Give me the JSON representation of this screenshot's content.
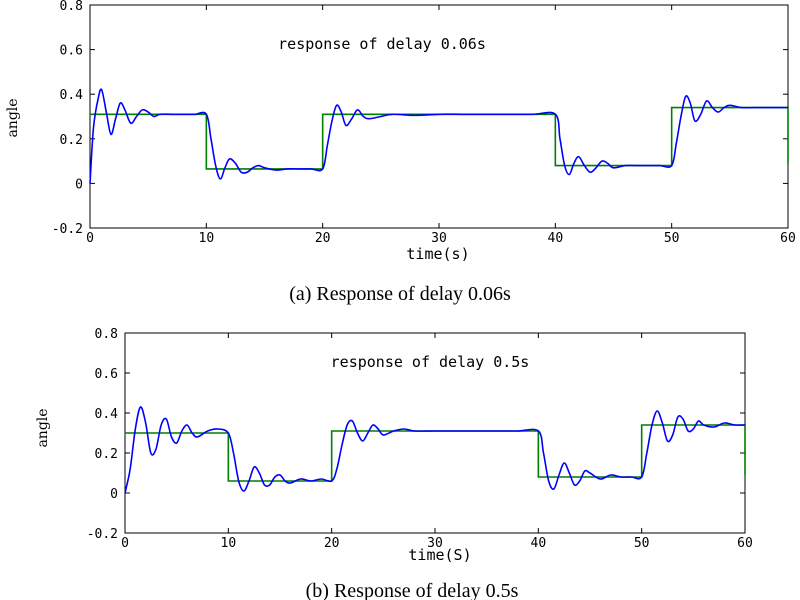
{
  "chart_data": [
    {
      "type": "line",
      "title": "response of delay 0.06s",
      "xlabel": "time(s)",
      "ylabel": "angle",
      "caption": "(a) Response of delay 0.06s",
      "xlim": [
        0,
        60
      ],
      "ylim": [
        -0.2,
        0.8
      ],
      "xticks": [
        "0",
        "10",
        "20",
        "30",
        "40",
        "50",
        "60"
      ],
      "yticks": [
        "-0.2",
        "0",
        "0.2",
        "0.4",
        "0.6",
        "0.8"
      ],
      "grid": false,
      "colors": {
        "reference": "#007f00",
        "response": "#0000ff"
      },
      "series": [
        {
          "role": "reference",
          "segments": [
            {
              "x0": 0,
              "x1": 10,
              "y": 0.31
            },
            {
              "x0": 10,
              "x1": 20,
              "y": 0.065
            },
            {
              "x0": 20,
              "x1": 40,
              "y": 0.31
            },
            {
              "x0": 40,
              "x1": 50,
              "y": 0.08
            },
            {
              "x0": 50,
              "x1": 60,
              "y": 0.34
            }
          ]
        },
        {
          "role": "response",
          "x": [
            0,
            0.3,
            0.7,
            1.0,
            1.4,
            1.8,
            2.2,
            2.6,
            3.0,
            3.5,
            4.0,
            4.5,
            5.0,
            5.5,
            6.0,
            7.0,
            8.0,
            9.0,
            10.0,
            10.4,
            10.8,
            11.2,
            11.6,
            12.0,
            12.5,
            13.0,
            13.5,
            14.0,
            14.5,
            15.0,
            16.0,
            17.0,
            18.0,
            19.0,
            20.0,
            20.4,
            20.8,
            21.2,
            21.6,
            22.0,
            22.5,
            23.0,
            23.5,
            24.0,
            25.0,
            26.0,
            28.0,
            30.0,
            32.0,
            35.0,
            38.0,
            40.0,
            40.4,
            40.8,
            41.2,
            41.6,
            42.0,
            42.5,
            43.0,
            43.5,
            44.0,
            44.5,
            45.0,
            46.0,
            47.0,
            48.0,
            49.0,
            50.0,
            50.4,
            50.8,
            51.2,
            51.6,
            52.0,
            52.5,
            53.0,
            53.5,
            54.0,
            54.5,
            55.0,
            56.0,
            57.0,
            58.0,
            59.0,
            60.0
          ],
          "y": [
            0.0,
            0.25,
            0.38,
            0.42,
            0.32,
            0.22,
            0.29,
            0.36,
            0.33,
            0.27,
            0.3,
            0.33,
            0.32,
            0.3,
            0.31,
            0.31,
            0.31,
            0.31,
            0.31,
            0.2,
            0.08,
            0.02,
            0.07,
            0.11,
            0.09,
            0.05,
            0.05,
            0.07,
            0.08,
            0.07,
            0.06,
            0.065,
            0.065,
            0.065,
            0.065,
            0.17,
            0.28,
            0.35,
            0.32,
            0.26,
            0.29,
            0.33,
            0.3,
            0.29,
            0.3,
            0.31,
            0.305,
            0.31,
            0.31,
            0.31,
            0.31,
            0.31,
            0.2,
            0.08,
            0.04,
            0.09,
            0.12,
            0.08,
            0.05,
            0.07,
            0.1,
            0.09,
            0.07,
            0.08,
            0.08,
            0.08,
            0.08,
            0.08,
            0.18,
            0.3,
            0.39,
            0.36,
            0.28,
            0.31,
            0.37,
            0.34,
            0.32,
            0.34,
            0.35,
            0.34,
            0.34,
            0.34,
            0.34,
            0.34
          ]
        }
      ]
    },
    {
      "type": "line",
      "title": "response of delay 0.5s",
      "xlabel": "time(S)",
      "ylabel": "angle",
      "caption": "(b) Response of delay 0.5s",
      "xlim": [
        0,
        60
      ],
      "ylim": [
        -0.2,
        0.8
      ],
      "xticks": [
        "0",
        "10",
        "20",
        "30",
        "40",
        "50",
        "60"
      ],
      "yticks": [
        "-0.2",
        "0",
        "0.2",
        "0.4",
        "0.6",
        "0.8"
      ],
      "grid": false,
      "colors": {
        "reference": "#007f00",
        "response": "#0000ff"
      },
      "series": [
        {
          "role": "reference",
          "segments": [
            {
              "x0": 0,
              "x1": 10,
              "y": 0.3
            },
            {
              "x0": 10,
              "x1": 20,
              "y": 0.06
            },
            {
              "x0": 20,
              "x1": 40,
              "y": 0.31
            },
            {
              "x0": 40,
              "x1": 50,
              "y": 0.08
            },
            {
              "x0": 50,
              "x1": 60,
              "y": 0.34
            }
          ]
        },
        {
          "role": "response",
          "x": [
            0,
            0.5,
            1.0,
            1.5,
            2.0,
            2.5,
            3.0,
            3.5,
            4.0,
            4.5,
            5.0,
            5.5,
            6.0,
            6.5,
            7.0,
            8.0,
            9.0,
            10.0,
            10.5,
            11.0,
            11.5,
            12.0,
            12.5,
            13.0,
            13.5,
            14.0,
            14.5,
            15.0,
            15.5,
            16.0,
            17.0,
            18.0,
            19.0,
            20.0,
            20.5,
            21.0,
            21.5,
            22.0,
            22.5,
            23.0,
            23.5,
            24.0,
            24.5,
            25.0,
            26.0,
            27.0,
            28.0,
            30.0,
            32.0,
            34.0,
            36.0,
            38.0,
            40.0,
            40.5,
            41.0,
            41.5,
            42.0,
            42.5,
            43.0,
            43.5,
            44.0,
            44.5,
            45.0,
            46.0,
            47.0,
            48.0,
            49.0,
            50.0,
            50.5,
            51.0,
            51.5,
            52.0,
            52.5,
            53.0,
            53.5,
            54.0,
            54.5,
            55.0,
            55.5,
            56.0,
            57.0,
            58.0,
            59.0,
            60.0
          ],
          "y": [
            0.0,
            0.12,
            0.32,
            0.43,
            0.35,
            0.2,
            0.22,
            0.34,
            0.37,
            0.28,
            0.25,
            0.31,
            0.34,
            0.3,
            0.28,
            0.31,
            0.32,
            0.3,
            0.2,
            0.06,
            0.01,
            0.06,
            0.13,
            0.1,
            0.04,
            0.04,
            0.08,
            0.09,
            0.06,
            0.05,
            0.07,
            0.06,
            0.07,
            0.06,
            0.12,
            0.24,
            0.34,
            0.36,
            0.3,
            0.26,
            0.3,
            0.34,
            0.32,
            0.29,
            0.31,
            0.32,
            0.31,
            0.31,
            0.31,
            0.31,
            0.31,
            0.31,
            0.31,
            0.2,
            0.06,
            0.02,
            0.09,
            0.15,
            0.1,
            0.04,
            0.06,
            0.11,
            0.1,
            0.07,
            0.09,
            0.08,
            0.08,
            0.08,
            0.2,
            0.34,
            0.41,
            0.35,
            0.26,
            0.29,
            0.38,
            0.37,
            0.31,
            0.32,
            0.36,
            0.34,
            0.33,
            0.35,
            0.34,
            0.34
          ]
        }
      ]
    }
  ]
}
